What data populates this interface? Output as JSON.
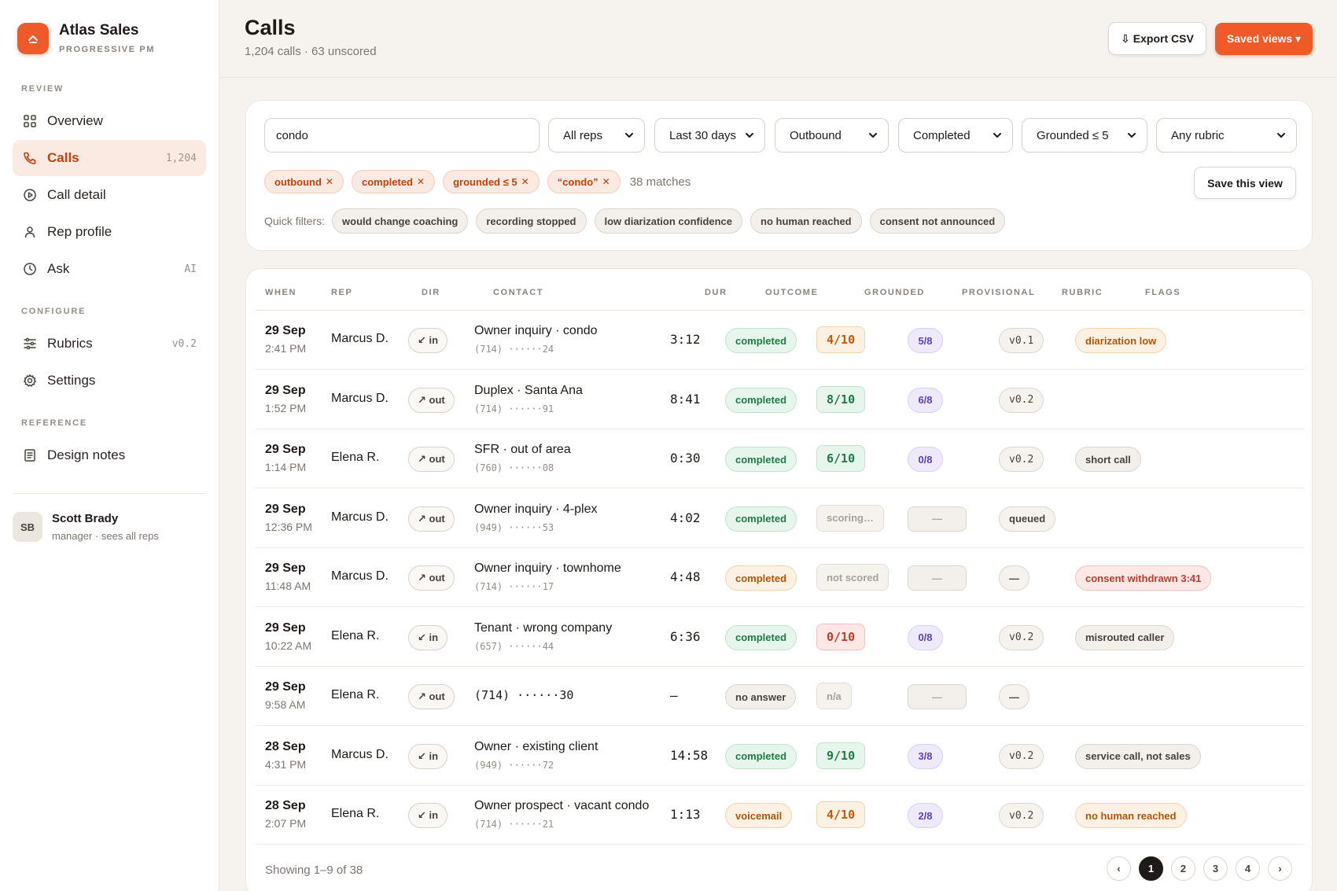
{
  "brand": {
    "name": "Atlas Sales",
    "subtitle": "PROGRESSIVE PM",
    "accent": "#ef5a2a"
  },
  "sidebar": {
    "sections": {
      "review": "REVIEW",
      "configure": "CONFIGURE",
      "reference": "REFERENCE"
    },
    "items": [
      {
        "label": "Overview",
        "meta": "",
        "icon": "grid-icon"
      },
      {
        "label": "Calls",
        "meta": "1,204",
        "icon": "phone-icon",
        "active": true
      },
      {
        "label": "Call detail",
        "meta": "",
        "icon": "play-circle-icon"
      },
      {
        "label": "Rep profile",
        "meta": "",
        "icon": "person-icon"
      },
      {
        "label": "Ask",
        "meta": "AI",
        "icon": "clock-icon"
      },
      {
        "label": "Rubrics",
        "meta": "v0.2",
        "icon": "sliders-icon"
      },
      {
        "label": "Settings",
        "meta": "",
        "icon": "gear-icon"
      },
      {
        "label": "Design notes",
        "meta": "",
        "icon": "document-icon"
      }
    ],
    "user": {
      "initials": "SB",
      "name": "Scott Brady",
      "role": "manager · sees all reps"
    }
  },
  "header": {
    "title": "Calls",
    "subtitle": "1,204 calls · 63 unscored",
    "export_label": "⇩ Export CSV",
    "saved_views_label": "Saved views ▾"
  },
  "filters": {
    "search_value": "condo",
    "selects": [
      "All reps",
      "Last 30 days",
      "Outbound",
      "Completed",
      "Grounded ≤ 5",
      "Any rubric"
    ],
    "chips": [
      "outbound",
      "completed",
      "grounded ≤ 5",
      "“condo”"
    ],
    "matches": "38 matches",
    "save_view_label": "Save this view",
    "quick_label": "Quick filters:",
    "quick": [
      "would change coaching",
      "recording stopped",
      "low diarization confidence",
      "no human reached",
      "consent not announced"
    ]
  },
  "table": {
    "columns": [
      "WHEN",
      "REP",
      "DIR",
      "CONTACT",
      "DUR",
      "OUTCOME",
      "GROUNDED",
      "PROVISIONAL",
      "RUBRIC",
      "FLAGS"
    ],
    "rows": [
      {
        "date": "29 Sep",
        "time": "2:41 PM",
        "rep": "Marcus D.",
        "dir": "↙ in",
        "contact": "Owner inquiry · condo",
        "phone": "(714) ······24",
        "dur": "3:12",
        "outcome": "completed",
        "outcome_tone": "green",
        "grounded": "4/10",
        "grounded_tone": "amber",
        "provisional": "5/8",
        "prov_tone": "purple",
        "rubric": "v0.1",
        "flag": "diarization low",
        "flag_tone": "amber"
      },
      {
        "date": "29 Sep",
        "time": "1:52 PM",
        "rep": "Marcus D.",
        "dir": "↗ out",
        "contact": "Duplex · Santa Ana",
        "phone": "(714) ······91",
        "dur": "8:41",
        "outcome": "completed",
        "outcome_tone": "green",
        "grounded": "8/10",
        "grounded_tone": "green",
        "provisional": "6/8",
        "prov_tone": "purple",
        "rubric": "v0.2",
        "flag": "",
        "flag_tone": ""
      },
      {
        "date": "29 Sep",
        "time": "1:14 PM",
        "rep": "Elena R.",
        "dir": "↗ out",
        "contact": "SFR · out of area",
        "phone": "(760) ······08",
        "dur": "0:30",
        "outcome": "completed",
        "outcome_tone": "green",
        "grounded": "6/10",
        "grounded_tone": "green",
        "provisional": "0/8",
        "prov_tone": "purple",
        "rubric": "v0.2",
        "flag": "short call",
        "flag_tone": "gray"
      },
      {
        "date": "29 Sep",
        "time": "12:36 PM",
        "rep": "Marcus D.",
        "dir": "↗ out",
        "contact": "Owner inquiry · 4-plex",
        "phone": "(949) ······53",
        "dur": "4:02",
        "outcome": "completed",
        "outcome_tone": "green",
        "grounded": "scoring…",
        "grounded_tone": "muted",
        "provisional": "—",
        "prov_tone": "empty",
        "rubric": "queued",
        "flag": "",
        "flag_tone": ""
      },
      {
        "date": "29 Sep",
        "time": "11:48 AM",
        "rep": "Marcus D.",
        "dir": "↗ out",
        "contact": "Owner inquiry · townhome",
        "phone": "(714) ······17",
        "dur": "4:48",
        "outcome": "completed",
        "outcome_tone": "amber",
        "grounded": "not scored",
        "grounded_tone": "muted",
        "provisional": "—",
        "prov_tone": "empty",
        "rubric": "—",
        "flag": "consent withdrawn 3:41",
        "flag_tone": "red"
      },
      {
        "date": "29 Sep",
        "time": "10:22 AM",
        "rep": "Elena R.",
        "dir": "↙ in",
        "contact": "Tenant · wrong company",
        "phone": "(657) ······44",
        "dur": "6:36",
        "outcome": "completed",
        "outcome_tone": "green",
        "grounded": "0/10",
        "grounded_tone": "red",
        "provisional": "0/8",
        "prov_tone": "purple",
        "rubric": "v0.2",
        "flag": "misrouted caller",
        "flag_tone": "gray"
      },
      {
        "date": "29 Sep",
        "time": "9:58 AM",
        "rep": "Elena R.",
        "dir": "↗ out",
        "contact": "(714) ······30",
        "phone": "",
        "dur": "—",
        "outcome": "no answer",
        "outcome_tone": "gray",
        "grounded": "n/a",
        "grounded_tone": "muted",
        "provisional": "—",
        "prov_tone": "empty",
        "rubric": "—",
        "flag": "",
        "flag_tone": ""
      },
      {
        "date": "28 Sep",
        "time": "4:31 PM",
        "rep": "Marcus D.",
        "dir": "↙ in",
        "contact": "Owner · existing client",
        "phone": "(949) ······72",
        "dur": "14:58",
        "outcome": "completed",
        "outcome_tone": "green",
        "grounded": "9/10",
        "grounded_tone": "green",
        "provisional": "3/8",
        "prov_tone": "purple",
        "rubric": "v0.2",
        "flag": "service call, not sales",
        "flag_tone": "gray"
      },
      {
        "date": "28 Sep",
        "time": "2:07 PM",
        "rep": "Elena R.",
        "dir": "↙ in",
        "contact": "Owner prospect · vacant condo",
        "phone": "(714) ······21",
        "dur": "1:13",
        "outcome": "voicemail",
        "outcome_tone": "amber",
        "grounded": "4/10",
        "grounded_tone": "amber",
        "provisional": "2/8",
        "prov_tone": "purple",
        "rubric": "v0.2",
        "flag": "no human reached",
        "flag_tone": "amber"
      }
    ],
    "showing": "Showing 1–9 of 38",
    "pages": [
      "‹",
      "1",
      "2",
      "3",
      "4",
      "›"
    ],
    "current_page": "1"
  }
}
